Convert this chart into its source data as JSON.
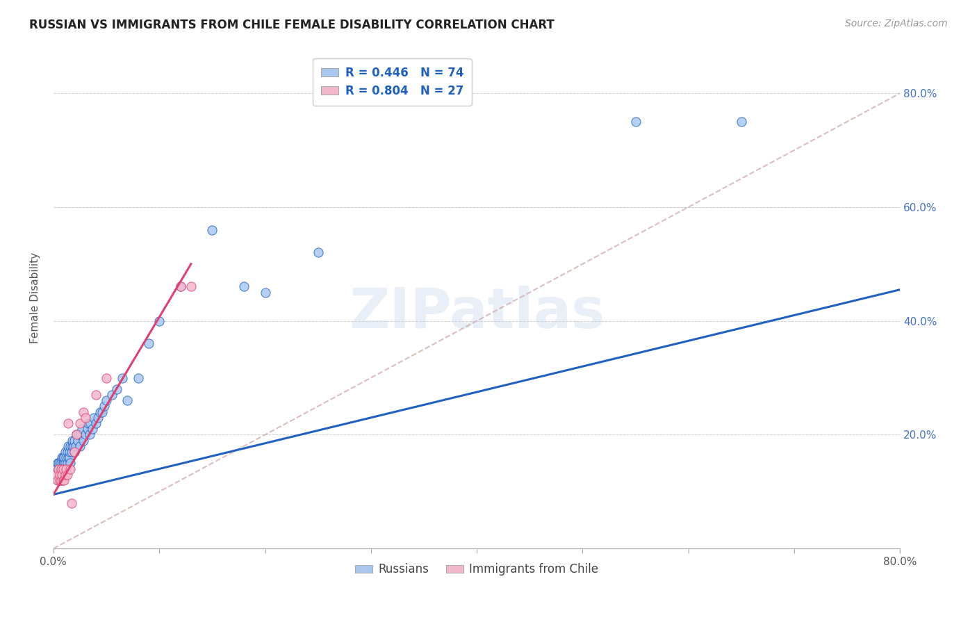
{
  "title": "RUSSIAN VS IMMIGRANTS FROM CHILE FEMALE DISABILITY CORRELATION CHART",
  "source": "Source: ZipAtlas.com",
  "ylabel": "Female Disability",
  "ytick_labels": [
    "",
    "20.0%",
    "40.0%",
    "60.0%",
    "80.0%"
  ],
  "ytick_positions": [
    0.0,
    0.2,
    0.4,
    0.6,
    0.8
  ],
  "xlim": [
    0.0,
    0.8
  ],
  "ylim": [
    0.0,
    0.88
  ],
  "color_russian": "#a8c8f0",
  "color_chile": "#f4b8cc",
  "color_line_russian": "#2060c0",
  "color_line_chile": "#e04070",
  "color_line_diagonal": "#d0a8a8",
  "watermark": "ZIPatlas",
  "legend_label_russian": "Russians",
  "legend_label_chile": "Immigrants from Chile",
  "russians_x": [
    0.002,
    0.003,
    0.004,
    0.004,
    0.005,
    0.005,
    0.005,
    0.006,
    0.006,
    0.006,
    0.007,
    0.007,
    0.007,
    0.008,
    0.008,
    0.009,
    0.009,
    0.009,
    0.01,
    0.01,
    0.01,
    0.011,
    0.011,
    0.012,
    0.012,
    0.013,
    0.013,
    0.014,
    0.014,
    0.015,
    0.015,
    0.016,
    0.016,
    0.017,
    0.018,
    0.018,
    0.019,
    0.02,
    0.02,
    0.021,
    0.022,
    0.023,
    0.024,
    0.025,
    0.026,
    0.027,
    0.028,
    0.03,
    0.032,
    0.033,
    0.034,
    0.035,
    0.037,
    0.038,
    0.04,
    0.042,
    0.044,
    0.046,
    0.048,
    0.05,
    0.055,
    0.06,
    0.065,
    0.07,
    0.08,
    0.09,
    0.1,
    0.12,
    0.15,
    0.18,
    0.2,
    0.25,
    0.55,
    0.65
  ],
  "russians_y": [
    0.13,
    0.14,
    0.12,
    0.15,
    0.13,
    0.14,
    0.15,
    0.13,
    0.14,
    0.15,
    0.12,
    0.14,
    0.15,
    0.13,
    0.16,
    0.14,
    0.15,
    0.16,
    0.14,
    0.15,
    0.16,
    0.15,
    0.17,
    0.14,
    0.16,
    0.15,
    0.17,
    0.16,
    0.18,
    0.16,
    0.17,
    0.15,
    0.18,
    0.17,
    0.18,
    0.19,
    0.18,
    0.17,
    0.19,
    0.18,
    0.2,
    0.19,
    0.2,
    0.18,
    0.2,
    0.21,
    0.19,
    0.2,
    0.21,
    0.22,
    0.2,
    0.22,
    0.21,
    0.23,
    0.22,
    0.23,
    0.24,
    0.24,
    0.25,
    0.26,
    0.27,
    0.28,
    0.3,
    0.26,
    0.3,
    0.36,
    0.4,
    0.46,
    0.56,
    0.46,
    0.45,
    0.52,
    0.75,
    0.75
  ],
  "chile_x": [
    0.002,
    0.003,
    0.004,
    0.005,
    0.006,
    0.006,
    0.007,
    0.007,
    0.008,
    0.009,
    0.009,
    0.01,
    0.011,
    0.012,
    0.013,
    0.014,
    0.016,
    0.017,
    0.02,
    0.022,
    0.025,
    0.028,
    0.03,
    0.04,
    0.05,
    0.12,
    0.13
  ],
  "chile_y": [
    0.13,
    0.13,
    0.12,
    0.14,
    0.12,
    0.13,
    0.12,
    0.14,
    0.13,
    0.12,
    0.14,
    0.12,
    0.13,
    0.14,
    0.13,
    0.22,
    0.14,
    0.08,
    0.17,
    0.2,
    0.22,
    0.24,
    0.23,
    0.27,
    0.3,
    0.46,
    0.46
  ],
  "russian_line_x": [
    0.0,
    0.8
  ],
  "russian_line_y": [
    0.095,
    0.455
  ],
  "chile_line_x": [
    0.0,
    0.13
  ],
  "chile_line_y": [
    0.095,
    0.5
  ]
}
